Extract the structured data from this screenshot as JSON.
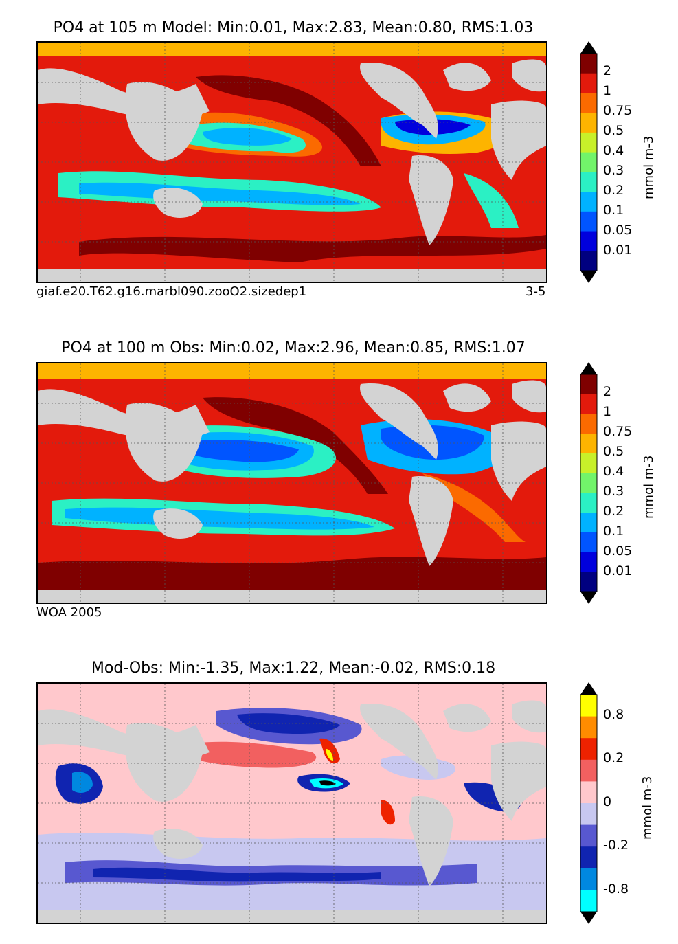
{
  "panels": [
    {
      "title": "PO4  at 105 m Model: Min:0.01, Max:2.83, Mean:0.80, RMS:1.03",
      "caption_left": "giaf.e20.T62.g16.marbl090.zooO2.sizedep1",
      "caption_right": "3-5",
      "colorbar": {
        "labels": [
          "2",
          "1",
          "0.75",
          "0.5",
          "0.4",
          "0.3",
          "0.2",
          "0.1",
          "0.05",
          "0.01"
        ],
        "colors": [
          "#7f0000",
          "#e31a0c",
          "#fb6a00",
          "#fdb400",
          "#c8f02a",
          "#72f46a",
          "#2bf0c4",
          "#00b2ff",
          "#0055ff",
          "#0000dd",
          "#000080"
        ],
        "unit": "mmol m-3"
      }
    },
    {
      "title": "PO4  at 100 m Obs: Min:0.02, Max:2.96, Mean:0.85, RMS:1.07",
      "caption_left": "WOA 2005",
      "caption_right": "",
      "colorbar": {
        "labels": [
          "2",
          "1",
          "0.75",
          "0.5",
          "0.4",
          "0.3",
          "0.2",
          "0.1",
          "0.05",
          "0.01"
        ],
        "colors": [
          "#7f0000",
          "#e31a0c",
          "#fb6a00",
          "#fdb400",
          "#c8f02a",
          "#72f46a",
          "#2bf0c4",
          "#00b2ff",
          "#0055ff",
          "#0000dd",
          "#000080"
        ],
        "unit": "mmol m-3"
      }
    },
    {
      "title": "Mod-Obs: Min:-1.35, Max:1.22, Mean:-0.02, RMS:0.18",
      "caption_left": "",
      "caption_right": "",
      "colorbar": {
        "labels": [
          "0.8",
          "0.2",
          "0",
          "-0.2",
          "-0.8"
        ],
        "colors": [
          "#ffff00",
          "#ff8c00",
          "#ee2200",
          "#f26060",
          "#ffc8cc",
          "#c8c8f0",
          "#5858d0",
          "#1024b0",
          "#0088e0",
          "#00ffff"
        ],
        "unit": "mmol m-3"
      }
    }
  ],
  "colors": {
    "land": "#d3d3d3",
    "coast": "#000000"
  }
}
